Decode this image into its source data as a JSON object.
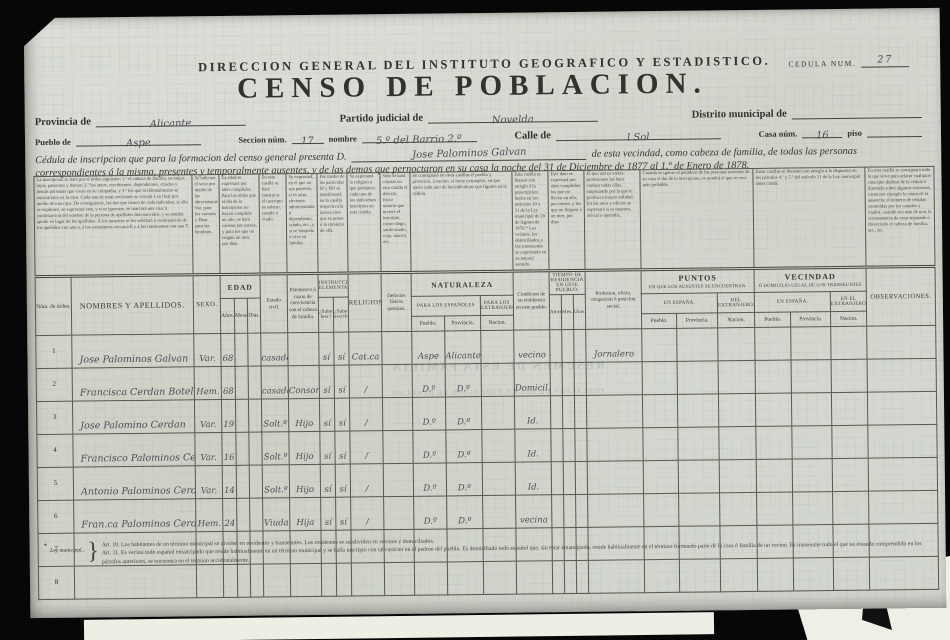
{
  "scan": {
    "background_color": "#070707",
    "paper_color": "#d8dbd4",
    "print_ink_color": "#34322c",
    "handwriting_ink_color": "#4f4c55"
  },
  "header": {
    "direccion": "DIRECCION GENERAL DEL INSTITUTO GEOGRAFICO Y ESTADISTICO.",
    "cedula_label": "CEDULA NUM.",
    "cedula_value": "27",
    "title": "CENSO DE POBLACION."
  },
  "fields": {
    "provincia_label": "Provincia de",
    "provincia_value": "Alicante",
    "partido_label": "Partido judicial de",
    "partido_value": "Novelda",
    "distrito_label": "Distrito municipal de",
    "distrito_value": "",
    "pueblo_label": "Pueblo de",
    "pueblo_value": "Aspe",
    "seccion_label": "Seccion núm.",
    "seccion_value": "17",
    "nombre_label": "nombre",
    "nombre_value": "5.º del Barrio 2.º",
    "calle_label": "Calle de",
    "calle_value": "l Sol",
    "casa_label": "Casa núm.",
    "casa_value": "16",
    "piso_label": "piso",
    "piso_value": ""
  },
  "declaration": {
    "line1_pre": "Cédula de inscripcion que para la formacion del censo general presenta D.",
    "line1_name": "Jose Palominos Galvan",
    "line1_post": "de esta vecindad, como cabeza de familia, de todas las personas",
    "line2": "correspondientes á la misma, presentes y temporalmente ausentes, y de las demas que pernoctaron en su casa la noche del 31 de Diciembre de 1877 al 1.º de Enero de 1878."
  },
  "bleedthrough": {
    "line1": "RESUMEN DE ESTA FAMILIA",
    "line2": "POBLACION DE HECHO      POBLACION DE DERECHO"
  },
  "table": {
    "instructions": [
      "La inscripcion se hará por el órden siguiente: 1.º el cabeza de familia, su mujer, hijos, parientes y demás; 2.º los amos, escribientes, dependientes, criados y demás personas que viven en su compañía, y 3.º los que accidentalmente se encontraren en la casa. Cada una de estas secciones se cerrará á su final por medio de una raya. De consiguiente, las dos que tienen de cada individuo, si ello se explicare, se expresará éste, y si se ignorase, se marcará una cruz á continuacion del nombre de la persona de apellidos desconocidos, y se pondrá apodo en lugar de los apellidos. Á los ausentes se les señalará á continuacion de los apellidos con una a, á los extranjeros con una E y á los transeuntes con una T.",
      "Se indicará el sexo por medio de las abreviaturas Var. para los varones y Hem. para las hembras.",
      "La edad se expresará por años cumplidos. Para los niños que el dia de la inscripcion no hayan cumplido un año, se hará constar por meses, y para los que no tengan un mes, por dias.",
      "En esta casilla se hará constar si el inscripto es soltero, casado ó viudo.",
      "Se expresará, en el que no sea pariente, si es amo, sirviente, administrador ó dependiente, criado, etc., y si se hospeda ó vive en familia.",
      "Por medio de las partículas SÍ y NO se manifestará en la casilla respectiva la instruccion que se posee ó la carencia de ella.",
      "Se expresará la religion á que pertenece cada uno de los individuos inscriptos en esta cédula.",
      "Sólo se hará constar en esta casilla el defecto físico notorio que tuviere el inscripto, como ciego, sordo-mudo, cojo, manco, etc.",
      "Se consignará en estas casillas el pueblo y provincia, ó nacion, si fuese extranjero, en que nació cada uno de los individuos que figuren en la cédula.",
      "Esta casilla se llenará con arreglo á la prescripcion hecha en los artículos 10 y 11 de la Ley municipal de 20 de Agosto de 1870.* Los vecinos, los domiciliados y los transeuntes se expresarán en su natural sentido.",
      "Este dato se expresará por años cumplidos; los que no lleven un año, por meses, y los que no lleguen á un mes, por dias.",
      "El que ejerza varias profesiones las hará constar todas ellas, empezando por la que le produzca mayor utilidad. En las artes y oficios se expresará si es maestro, oficial ó aprendiz.",
      "Cuando se ignore el paradero de las personas ausentes de su casa el dia de la inscripcion, se pondrá el que se crea más probable.",
      "Estas casillas se llenarán con arreglo á lo dispuesto en los párrafos 4.º y 5.º del artículo 11 de la Ley municipal ántes citada.",
      "En esta casilla se consignará todo lo que sirva para aclarar cualquier concepto dudoso de la cédula ó ilustrarla sobre algunos extremos, como por ejemplo la causa de la ausencia, el número de cédulas contraidas por los casados y viudos, cuando sea más de una, la circunstancia de estar separado ó divorciado el cabeza de familia, etc., etc."
    ],
    "columns": {
      "num": "Núm. de órden.",
      "nombres": "NOMBRES Y APELLIDOS.",
      "sexo": "SEXO.",
      "edad": "EDAD",
      "anos": "Años.",
      "meses": "Meses.",
      "dias": "Dias.",
      "estado": "Estado civil.",
      "parentesco": "Parentesco ó razon de convivencia con el cabeza de familia.",
      "instruccion": "INSTRUCCION ELEMENTAL.",
      "leer": "¿Sabe leer?",
      "escribir": "¿Sabe escribir?",
      "religion": "RELIGION.",
      "defectos": "Defectos físicos notorios.",
      "naturaleza": "NATURALEZA",
      "espanoles": "PARA LOS ESPAÑOLES",
      "extranjeros": "PARA LOS EXTRANJEROS.",
      "pueblo": "Pueblo.",
      "provincia": "Provincia.",
      "nacion": "Nacion.",
      "condicion": "Condicion de su residencia en este pueblo.",
      "tiempo": "TIEMPO DE RESIDENCIA EN ESTE PUEBLO.",
      "t_anos": "Años.",
      "t_mes": "Mes.",
      "t_dias": "Dias.",
      "profesion": "Profesion, oficio, ocupacion ó posicion social.",
      "puntos": "PUNTOS",
      "puntos_sub": "EN QUE LOS AUSENTES SE ENCUENTRAN.",
      "p_espana": "EN ESPAÑA.",
      "p_extranjero": "DEL EXTRANJERO.",
      "vecindad": "VECINDAD",
      "vecindad_sub": "Ó DOMICILIO LEGAL DE LOS TRANSEUNTES",
      "v_espana": "EN ESPAÑA.",
      "v_extranjero": "EN EL EXTRANJERO",
      "observaciones": "OBSERVACIONES."
    },
    "col_keys": [
      "num",
      "nombre",
      "sexo",
      "edad-anos",
      "edad-meses",
      "edad-dias",
      "estado",
      "parentesco",
      "sabe-leer",
      "sabe-escribir",
      "religion",
      "defectos",
      "nat-pueblo",
      "nat-provincia",
      "nat-nacion",
      "condicion",
      "res-anos",
      "res-meses",
      "res-dias",
      "profesion",
      "puntos-pueblo",
      "puntos-provincia",
      "puntos-nacion",
      "vecindad-pueblo",
      "vecindad-provincia",
      "vecindad-nacion",
      "observaciones"
    ],
    "rows": [
      [
        "1",
        "Jose Palominos Galvan",
        "Var.",
        "68",
        "",
        "",
        "casado",
        "",
        "sí",
        "sí",
        "Cat.ca",
        "",
        "Aspe",
        "Alicante",
        "",
        "vecino",
        "",
        "",
        "",
        "Jornalero",
        "",
        "",
        "",
        "",
        "",
        "",
        ""
      ],
      [
        "2",
        "Francisca Cerdan Botella",
        "Hem.",
        "68",
        "",
        "",
        "casada",
        "Consorte",
        "sí",
        "sí",
        "∕",
        "",
        "D.º",
        "D.º",
        "",
        "Domicil.da",
        "",
        "",
        "",
        "",
        "",
        "",
        "",
        "",
        "",
        "",
        ""
      ],
      [
        "3",
        "Jose Palomino Cerdan",
        "Var.",
        "19",
        "",
        "",
        "Solt.º",
        "Hijo",
        "sí",
        "sí",
        "∕",
        "",
        "D.º",
        "D.º",
        "",
        "Id.",
        "",
        "",
        "",
        "",
        "",
        "",
        "",
        "",
        "",
        "",
        ""
      ],
      [
        "4",
        "Francisco Palominos Cerdan",
        "Var.",
        "16",
        "",
        "",
        "Solt.º",
        "Hijo",
        "sí",
        "sí",
        "∕",
        "",
        "D.º",
        "D.º",
        "",
        "Id.",
        "",
        "",
        "",
        "",
        "",
        "",
        "",
        "",
        "",
        "",
        ""
      ],
      [
        "5",
        "Antonio Palominos Cerdan",
        "Var.",
        "14",
        "",
        "",
        "Solt.º",
        "Hijo",
        "sí",
        "sí",
        "∕",
        "",
        "D.º",
        "D.º",
        "",
        "Id.",
        "",
        "",
        "",
        "",
        "",
        "",
        "",
        "",
        "",
        "",
        ""
      ],
      [
        "6",
        "Fran.ca Palominos Cerdan",
        "Hem.",
        "24",
        "",
        "",
        "Viuda",
        "Hija",
        "sí",
        "sí",
        "∕",
        "",
        "D.º",
        "D.º",
        "",
        "vecina",
        "",
        "",
        "",
        "",
        "",
        "",
        "",
        "",
        "",
        "",
        ""
      ],
      [
        "7",
        "",
        "",
        "",
        "",
        "",
        "",
        "",
        "",
        "",
        "",
        "",
        "",
        "",
        "",
        "",
        "",
        "",
        "",
        "",
        "",
        "",
        "",
        "",
        "",
        "",
        ""
      ],
      [
        "8",
        "",
        "",
        "",
        "",
        "",
        "",
        "",
        "",
        "",
        "",
        "",
        "",
        "",
        "",
        "",
        "",
        "",
        "",
        "",
        "",
        "",
        "",
        "",
        "",
        "",
        ""
      ]
    ]
  },
  "footnote": {
    "star": "*",
    "label": "Ley municipal..",
    "brace": "}",
    "art10": "Art. 10.   Los habitantes de un término municipal se dividen en residentes y transeuntes. Los residentes se subdividen en vecinos y domiciliados.",
    "art11": "Art. 11.   Es vecino todo español emancipado que reside habitualmente en un término municipal y se halla inscripto con tal carácter en el padron del pueblo. Es domiciliado todo español que, sin estar emancipado, reside habitualmente en el término formando parte de la casa ó familia de un vecino. Es transeunte todo el que no estando comprendido en los párrafos anteriores, se encuentra en el término accidentalmente."
  }
}
